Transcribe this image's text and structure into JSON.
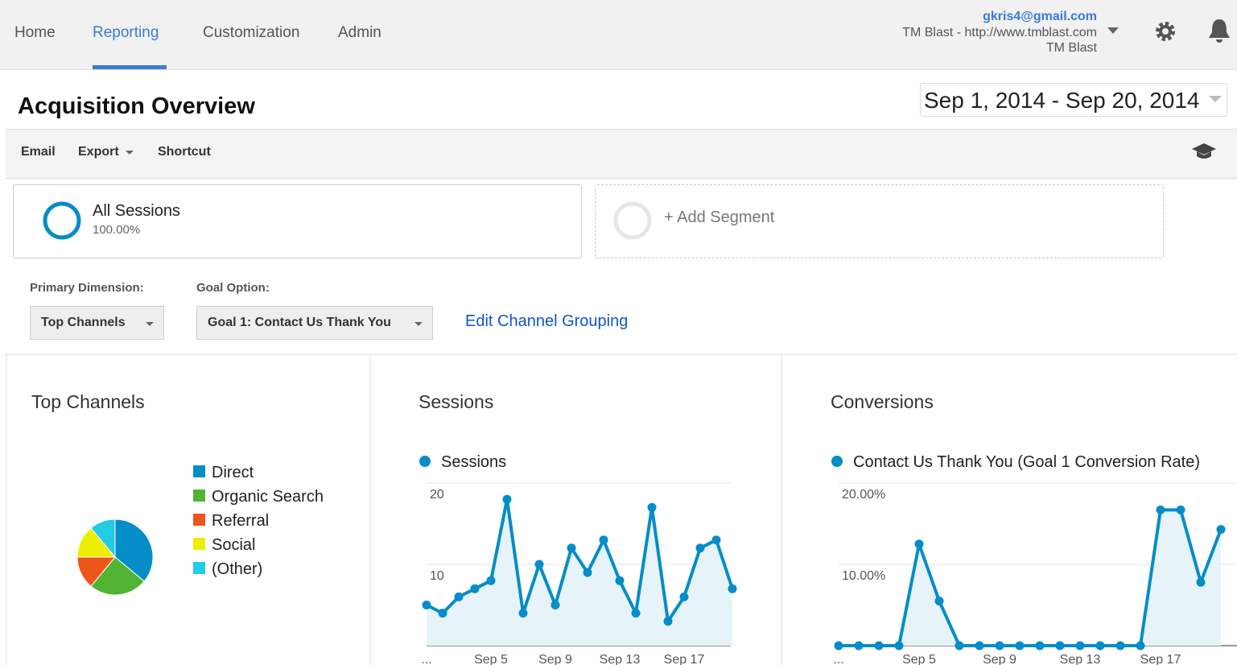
{
  "nav": {
    "tabs": [
      "Home",
      "Reporting",
      "Customization",
      "Admin"
    ]
  },
  "account": {
    "email": "gkris4@gmail.com",
    "property": "TM Blast - http://www.tmblast.com",
    "view": "TM Blast"
  },
  "header": {
    "title": "Acquisition Overview",
    "date_range": "Sep 1, 2014 - Sep 20, 2014"
  },
  "toolbar": [
    "Email",
    "Export",
    "Shortcut"
  ],
  "segments": [
    {
      "name": "All Sessions",
      "share": "100.00%"
    },
    {
      "name": "+ Add Segment"
    }
  ],
  "controls": {
    "primary_dimension": {
      "label": "Primary Dimension:",
      "value": "Top Channels"
    },
    "goal_option": {
      "label": "Goal Option:",
      "value": "Goal 1: Contact Us Thank You"
    },
    "link": "Edit Channel Grouping"
  },
  "chart_data": [
    {
      "type": "pie",
      "title": "Top Channels",
      "categories": [
        "Direct",
        "Organic Search",
        "Referral",
        "Social",
        "(Other)"
      ],
      "values": [
        36,
        25,
        14,
        14,
        11
      ],
      "colors": [
        "#058dc7",
        "#50b432",
        "#ed561b",
        "#edef00",
        "#24cbe5"
      ]
    },
    {
      "type": "line",
      "title": "Sessions",
      "categories": [
        "...",
        null,
        null,
        null,
        "Sep 5",
        null,
        null,
        null,
        "Sep 9",
        null,
        null,
        null,
        "Sep 13",
        null,
        null,
        null,
        "Sep 17",
        null,
        null,
        null
      ],
      "series": [
        {
          "name": "Sessions",
          "color": "#058dc7",
          "values": [
            5,
            4,
            6,
            7,
            8,
            18,
            4,
            10,
            5,
            12,
            9,
            13,
            8,
            4,
            17,
            3,
            6,
            12,
            13,
            7
          ]
        }
      ],
      "ylim": [
        0,
        20
      ],
      "yticks": [
        10,
        20
      ],
      "grid": true
    },
    {
      "type": "line",
      "title": "Conversions",
      "categories": [
        "...",
        null,
        null,
        null,
        "Sep 5",
        null,
        null,
        null,
        "Sep 9",
        null,
        null,
        null,
        "Sep 13",
        null,
        null,
        null,
        "Sep 17",
        null,
        null,
        null
      ],
      "series": [
        {
          "name": "Contact Us Thank You (Goal 1 Conversion Rate)",
          "color": "#058dc7",
          "values": [
            0,
            0,
            0,
            0,
            12.5,
            5.5,
            0,
            0,
            0,
            0,
            0,
            0,
            0,
            0,
            0,
            0,
            16.7,
            16.7,
            7.8,
            14.3
          ]
        }
      ],
      "ylim": [
        0,
        20
      ],
      "yticks": [
        {
          "value": 10,
          "label": "10.00%"
        },
        {
          "value": 20,
          "label": "20.00%"
        }
      ],
      "grid": true
    }
  ]
}
